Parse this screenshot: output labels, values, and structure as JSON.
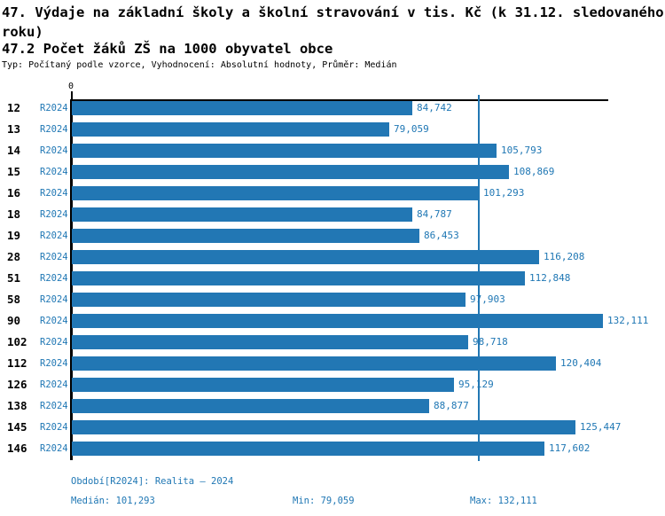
{
  "header": {
    "title": "47. Výdaje na základní školy a školní stravování v tis. Kč (k 31.12. sledovaného roku)",
    "subtitle": "47.2 Počet žáků ZŠ na 1000 obyvatel obce",
    "meta": "Typ: Počítaný podle vzorce, Vyhodnocení: Absolutní hodnoty, Průměr: Medián"
  },
  "chart_data": {
    "type": "bar",
    "orientation": "horizontal",
    "title": "47.2 Počet žáků ZŠ na 1000 obyvatel obce",
    "axis_zero_label": "0",
    "categories": [
      "12",
      "13",
      "14",
      "15",
      "16",
      "18",
      "19",
      "28",
      "51",
      "58",
      "90",
      "102",
      "112",
      "126",
      "138",
      "145",
      "146"
    ],
    "series": [
      {
        "name": "R2024",
        "values": [
          84742,
          79059,
          105793,
          108869,
          101293,
          84787,
          86453,
          116208,
          112848,
          97903,
          132111,
          98718,
          120404,
          95129,
          88877,
          125447,
          117602
        ]
      }
    ],
    "value_labels": [
      "84,742",
      "79,059",
      "105,793",
      "108,869",
      "101,293",
      "84,787",
      "86,453",
      "116,208",
      "112,848",
      "97,903",
      "132,111",
      "98,718",
      "120,404",
      "95,129",
      "88,877",
      "125,447",
      "117,602"
    ],
    "median": 101293,
    "min": 79059,
    "max": 132111,
    "xlim": [
      0,
      133600
    ],
    "grid": false,
    "legend": "none",
    "colors": {
      "bar": "#2277b4",
      "accent_text": "#1f77b4",
      "axis": "#000000",
      "median_line": "#2277b4"
    }
  },
  "footer": {
    "period": "Období[R2024]: Realita – 2024",
    "median": "Medián: 101,293",
    "min": "Min: 79,059",
    "max": "Max: 132,111"
  }
}
